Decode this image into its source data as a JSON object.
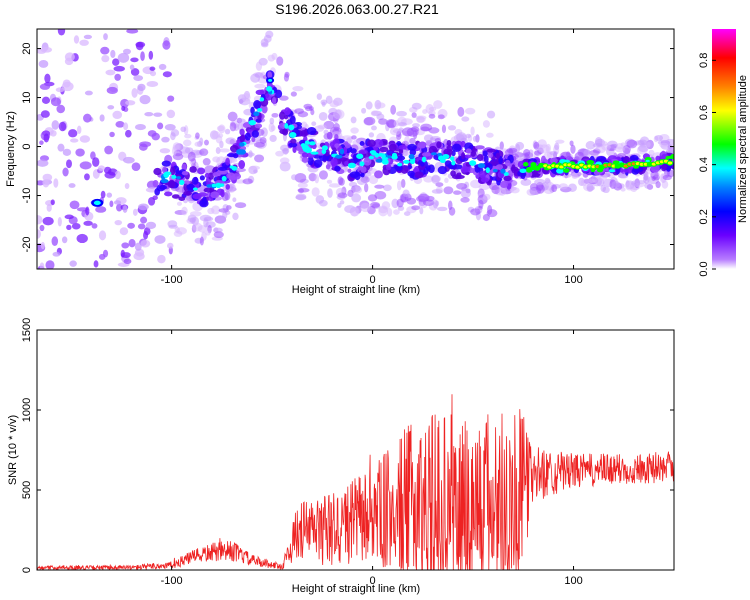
{
  "title": "S196.2026.063.00.27.R21",
  "chart_data": [
    {
      "type": "heatmap",
      "xlabel": "Height of straight line (km)",
      "ylabel": "Frequency (Hz)",
      "xlim": [
        -167,
        150
      ],
      "ylim": [
        -25,
        24
      ],
      "xticks": [
        -100,
        0,
        100
      ],
      "yticks": [
        -20,
        -10,
        0,
        10,
        20
      ],
      "colorbar": {
        "label": "Normalized spectral amplitude",
        "range": [
          0.0,
          0.92
        ],
        "ticks": [
          0.0,
          0.2,
          0.4,
          0.6,
          0.8
        ],
        "colormap": [
          "#b77cff",
          "#6a00ff",
          "#0000ff",
          "#00ffff",
          "#00ff00",
          "#ffff00",
          "#ff8000",
          "#ff0000",
          "#ff00ff"
        ]
      },
      "ridge": [
        {
          "x": -165,
          "f": -8
        },
        {
          "x": -140,
          "f": -12
        },
        {
          "x": -105,
          "f": -6
        },
        {
          "x": -90,
          "f": -8
        },
        {
          "x": -80,
          "f": -9
        },
        {
          "x": -70,
          "f": -5
        },
        {
          "x": -60,
          "f": 4
        },
        {
          "x": -52,
          "f": 13
        },
        {
          "x": -45,
          "f": 6
        },
        {
          "x": -35,
          "f": 0
        },
        {
          "x": -20,
          "f": -1
        },
        {
          "x": -10,
          "f": -3
        },
        {
          "x": 0,
          "f": -2
        },
        {
          "x": 15,
          "f": -3
        },
        {
          "x": 30,
          "f": -2
        },
        {
          "x": 45,
          "f": -3
        },
        {
          "x": 60,
          "f": -4
        },
        {
          "x": 70,
          "f": -5
        },
        {
          "x": 85,
          "f": -4
        },
        {
          "x": 100,
          "f": -4
        },
        {
          "x": 120,
          "f": -4
        },
        {
          "x": 150,
          "f": -3
        }
      ]
    },
    {
      "type": "line",
      "xlabel": "Height of straight line (km)",
      "ylabel": "SNR (10 * v/v)",
      "xlim": [
        -167,
        150
      ],
      "ylim": [
        0,
        1500
      ],
      "xticks": [
        -100,
        0,
        100
      ],
      "yticks": [
        0,
        500,
        1000,
        1500
      ],
      "line_color": "#ee2222",
      "envelope": [
        {
          "x": -167,
          "base": 15,
          "spread": 20
        },
        {
          "x": -120,
          "base": 15,
          "spread": 25
        },
        {
          "x": -100,
          "base": 30,
          "spread": 40
        },
        {
          "x": -90,
          "base": 80,
          "spread": 70
        },
        {
          "x": -80,
          "base": 110,
          "spread": 100
        },
        {
          "x": -70,
          "base": 120,
          "spread": 110
        },
        {
          "x": -60,
          "base": 60,
          "spread": 60
        },
        {
          "x": -45,
          "base": 20,
          "spread": 30
        },
        {
          "x": -37,
          "base": 250,
          "spread": 300
        },
        {
          "x": -20,
          "base": 250,
          "spread": 400
        },
        {
          "x": 0,
          "base": 350,
          "spread": 500
        },
        {
          "x": 20,
          "base": 400,
          "spread": 900
        },
        {
          "x": 40,
          "base": 400,
          "spread": 1000
        },
        {
          "x": 55,
          "base": 400,
          "spread": 1000
        },
        {
          "x": 72,
          "base": 450,
          "spread": 1050
        },
        {
          "x": 80,
          "base": 600,
          "spread": 300
        },
        {
          "x": 100,
          "base": 620,
          "spread": 180
        },
        {
          "x": 150,
          "base": 640,
          "spread": 150
        }
      ]
    }
  ]
}
